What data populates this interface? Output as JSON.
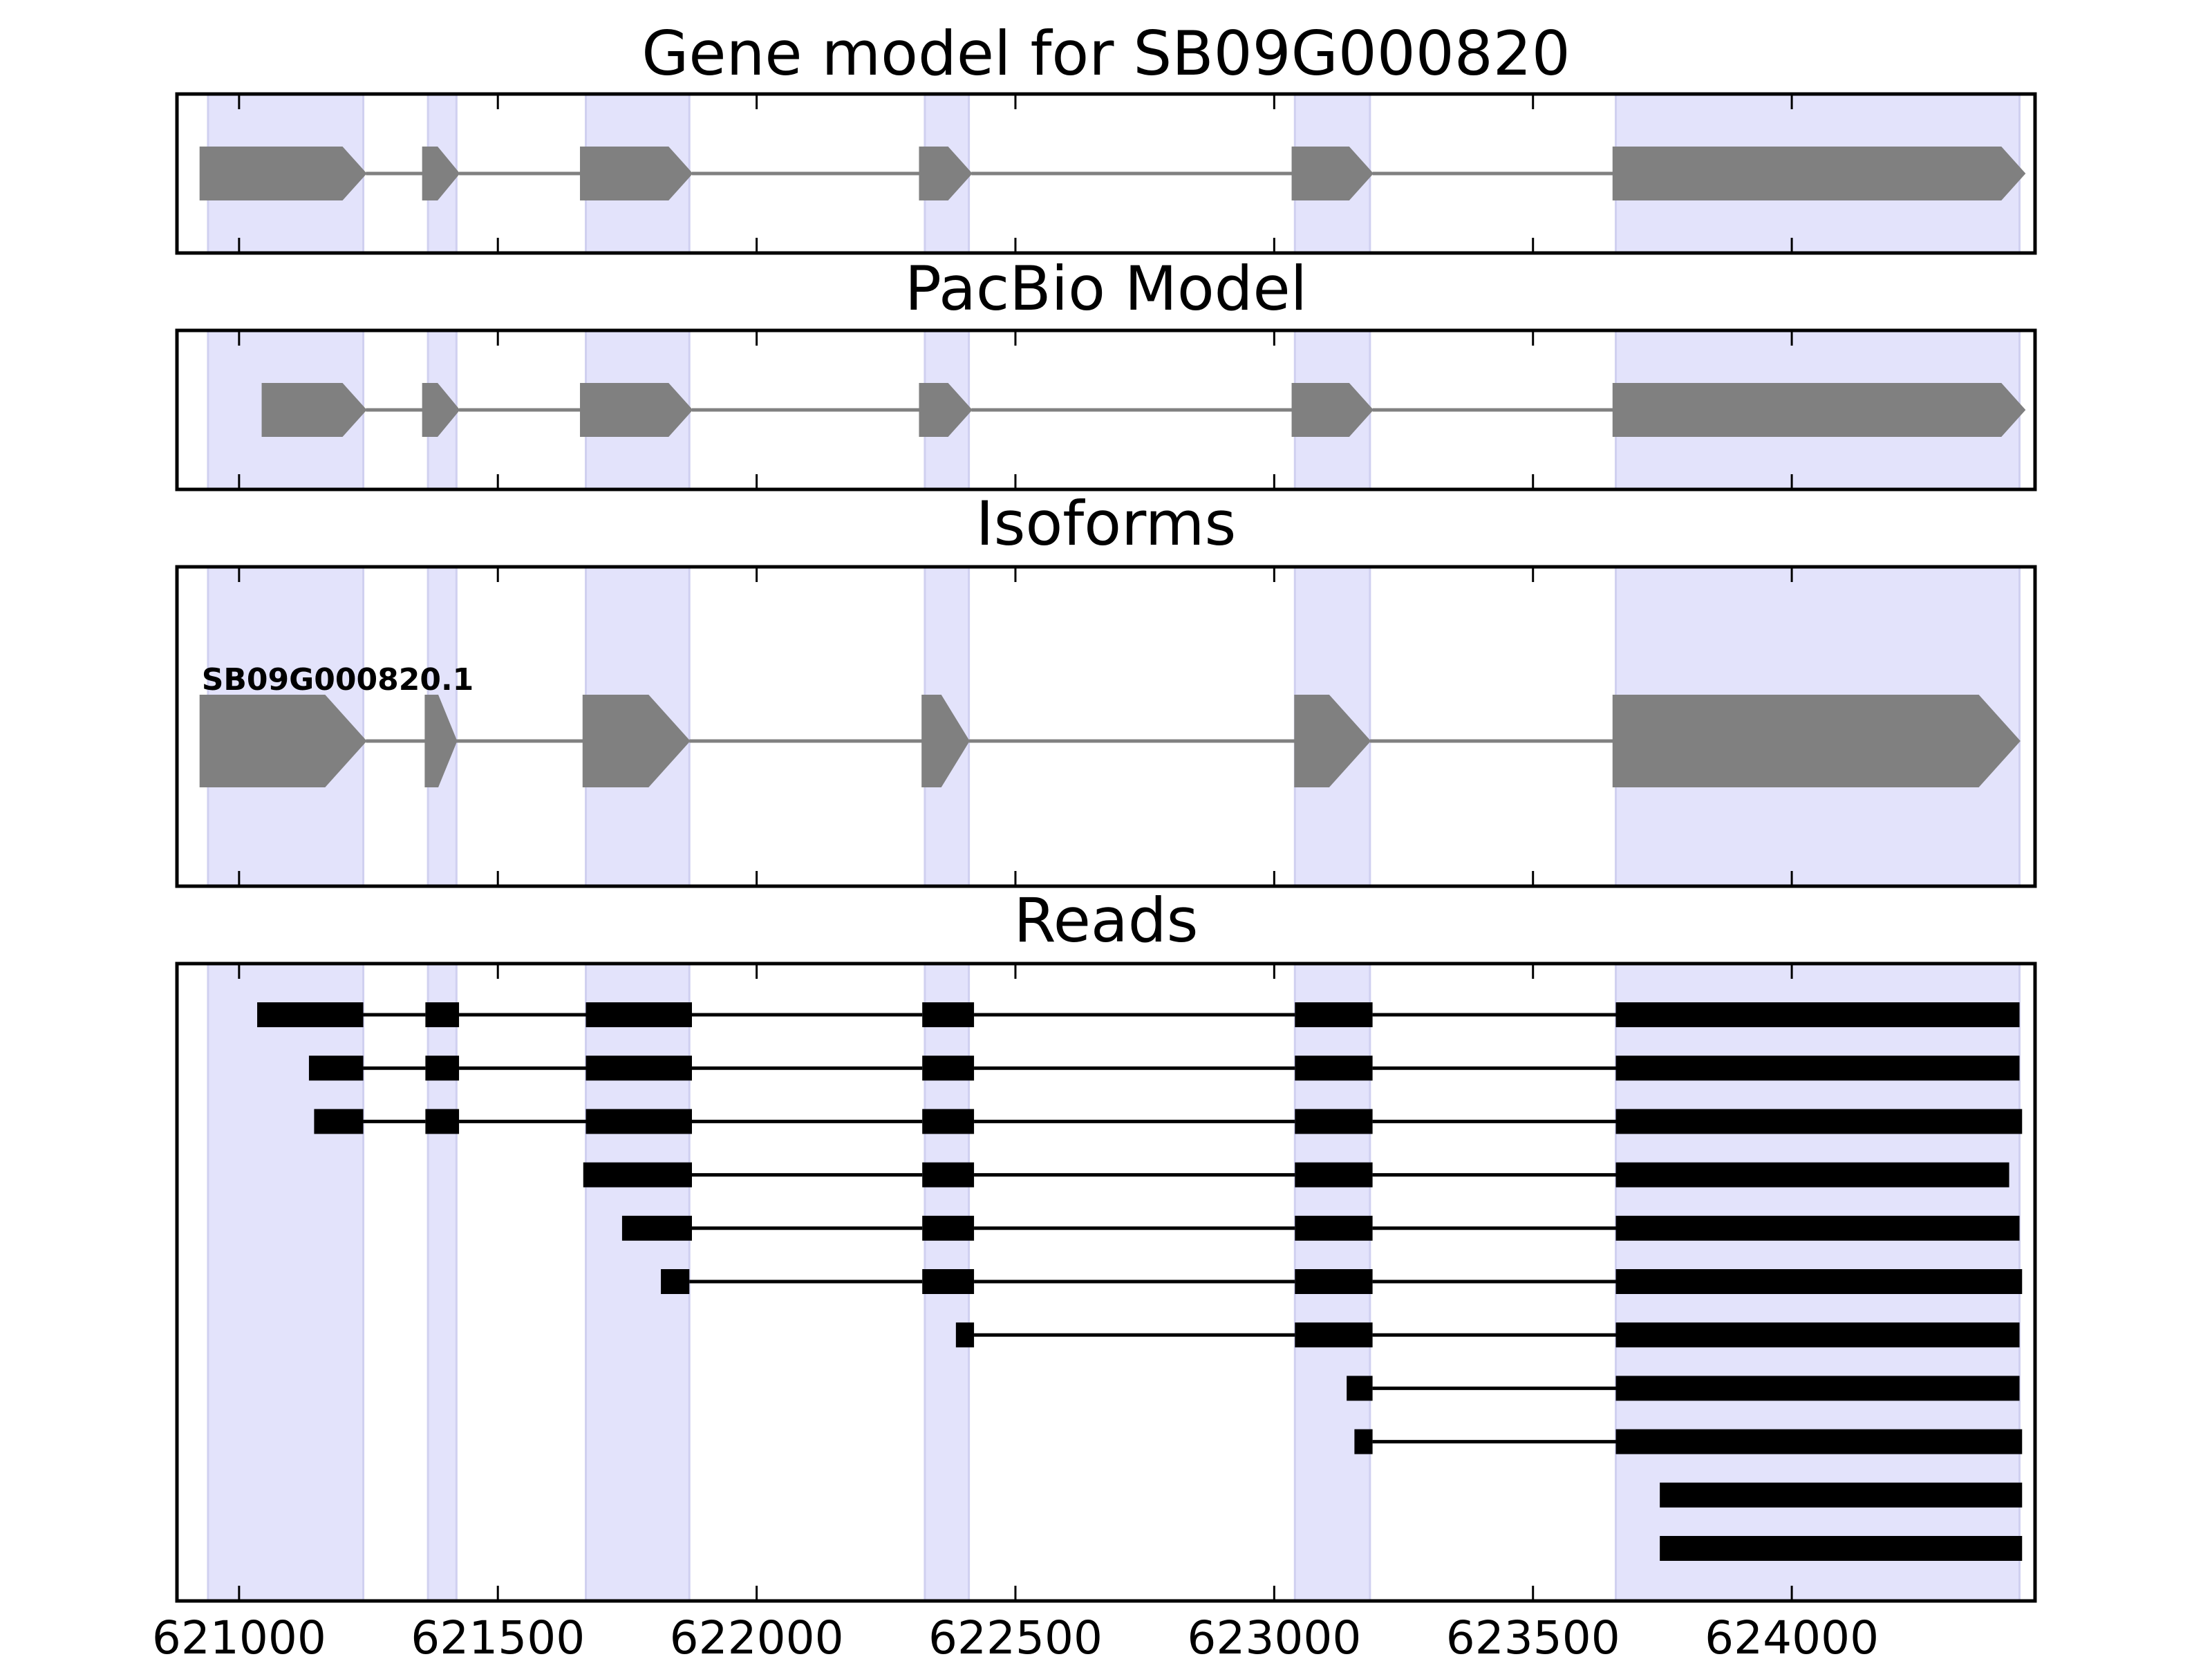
{
  "chart_data": {
    "type": "gene-track",
    "x_range": [
      620880,
      624470
    ],
    "x_ticks": [
      621000,
      621500,
      622000,
      622500,
      623000,
      623500,
      624000
    ],
    "colors": {
      "exon_fill": "#808080",
      "intron_line": "#808080",
      "read_fill": "#000000",
      "highlight": "#e3e3fb",
      "highlight_edge": "#d0d0f0",
      "frame": "#000000"
    },
    "highlight_regions": [
      [
        620940,
        621240
      ],
      [
        621365,
        621420
      ],
      [
        621670,
        621870
      ],
      [
        622325,
        622410
      ],
      [
        623040,
        623185
      ],
      [
        623660,
        624440
      ]
    ],
    "panels": [
      {
        "title": "Gene model for SB09G000820",
        "kind": "model",
        "strand": "+",
        "exons": [
          [
            620925,
            621245
          ],
          [
            621355,
            621425
          ],
          [
            621660,
            621875
          ],
          [
            622315,
            622415
          ],
          [
            623035,
            623190
          ],
          [
            623655,
            624450
          ]
        ]
      },
      {
        "title": "PacBio Model",
        "kind": "model",
        "strand": "+",
        "exons": [
          [
            621045,
            621245
          ],
          [
            621355,
            621425
          ],
          [
            621660,
            621875
          ],
          [
            622315,
            622415
          ],
          [
            623035,
            623190
          ],
          [
            623655,
            624450
          ]
        ]
      },
      {
        "title": "Isoforms",
        "kind": "isoforms",
        "isoforms": [
          {
            "name": "SB09G000820.1",
            "strand": "+",
            "exons": [
              [
                620925,
                621245
              ],
              [
                621360,
                621420
              ],
              [
                621665,
                621870
              ],
              [
                622320,
                622410
              ],
              [
                623040,
                623185
              ],
              [
                623655,
                624440
              ]
            ]
          }
        ]
      },
      {
        "title": "Reads",
        "kind": "reads",
        "reads": [
          [
            [
              621035,
              621240
            ],
            [
              621360,
              621425
            ],
            [
              621670,
              621875
            ],
            [
              622320,
              622420
            ],
            [
              623040,
              623190
            ],
            [
              623660,
              624440
            ]
          ],
          [
            [
              621135,
              621240
            ],
            [
              621360,
              621425
            ],
            [
              621670,
              621875
            ],
            [
              622320,
              622420
            ],
            [
              623040,
              623190
            ],
            [
              623660,
              624440
            ]
          ],
          [
            [
              621145,
              621240
            ],
            [
              621360,
              621425
            ],
            [
              621670,
              621875
            ],
            [
              622320,
              622420
            ],
            [
              623040,
              623190
            ],
            [
              623660,
              624445
            ]
          ],
          [
            [
              621665,
              621875
            ],
            [
              622320,
              622420
            ],
            [
              623040,
              623190
            ],
            [
              623660,
              624420
            ]
          ],
          [
            [
              621740,
              621875
            ],
            [
              622320,
              622420
            ],
            [
              623040,
              623190
            ],
            [
              623660,
              624440
            ]
          ],
          [
            [
              621815,
              621870
            ],
            [
              622320,
              622420
            ],
            [
              623040,
              623190
            ],
            [
              623660,
              624445
            ]
          ],
          [
            [
              622385,
              622420
            ],
            [
              623040,
              623190
            ],
            [
              623660,
              624440
            ]
          ],
          [
            [
              623140,
              623190
            ],
            [
              623660,
              624440
            ]
          ],
          [
            [
              623155,
              623190
            ],
            [
              623660,
              624445
            ]
          ],
          [
            [
              623745,
              624445
            ]
          ],
          [
            [
              623745,
              624445
            ]
          ]
        ]
      }
    ]
  }
}
